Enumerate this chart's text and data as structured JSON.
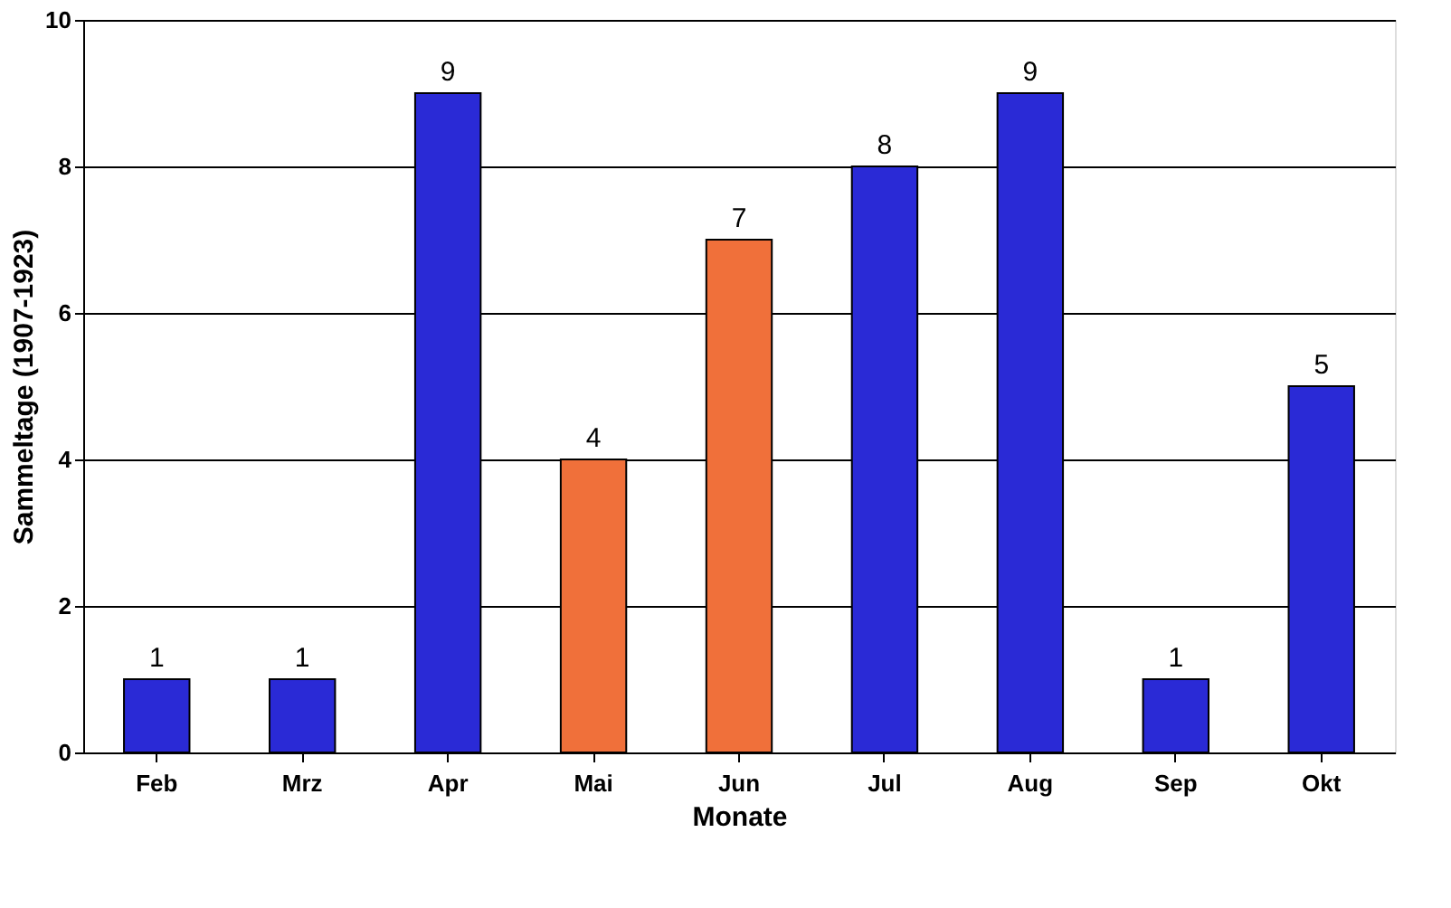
{
  "chart_data": {
    "type": "bar",
    "xlabel": "Monate",
    "ylabel": "Sammeltage (1907-1923)",
    "categories": [
      "Feb",
      "Mrz",
      "Apr",
      "Mai",
      "Jun",
      "Jul",
      "Aug",
      "Sep",
      "Okt"
    ],
    "values": [
      1,
      1,
      9,
      4,
      7,
      8,
      9,
      1,
      5
    ],
    "colors": [
      "#2a2ad6",
      "#2a2ad6",
      "#2a2ad6",
      "#f0703a",
      "#f0703a",
      "#2a2ad6",
      "#2a2ad6",
      "#2a2ad6",
      "#2a2ad6"
    ],
    "ylim": [
      0,
      10
    ],
    "yticks": [
      0,
      2,
      4,
      6,
      8,
      10
    ],
    "grid": "y",
    "data_labels": true
  }
}
